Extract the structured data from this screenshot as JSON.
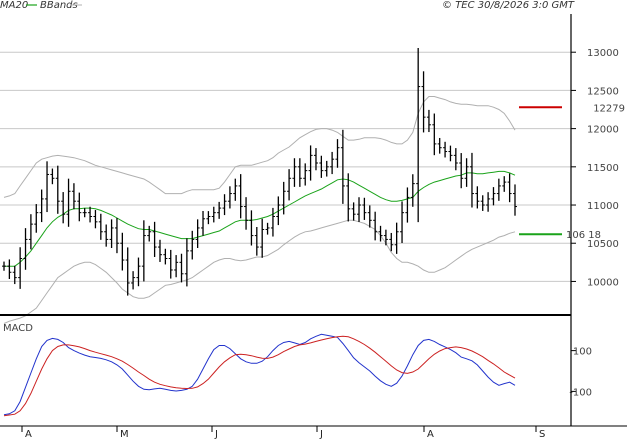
{
  "header": {
    "legend_ma": "MA20",
    "legend_bb": "BBands",
    "copyright": "© TEC 30/8/2026 3:0 GMT",
    "ma_color": "#1aa31a",
    "bb_color": "#b0b0b0"
  },
  "chart_data": [
    {
      "type": "ohlc",
      "title": "",
      "ylim": [
        9600,
        13500
      ],
      "yticks": [
        10000,
        10500,
        11000,
        11500,
        12000,
        12500,
        13000
      ],
      "ytick_labels": [
        "10000",
        "10500",
        "11000",
        "11500",
        "12000",
        "12500",
        "13000"
      ],
      "grid": true,
      "month_labels": [
        "A",
        "M",
        "J",
        "J",
        "A",
        "S"
      ],
      "resistance": {
        "value": 12279,
        "label": "12279",
        "color": "#cc0000"
      },
      "support": {
        "value": 10618,
        "label": "106 18",
        "color": "#1aa31a"
      },
      "close": [
        10200,
        10120,
        10050,
        10300,
        10550,
        10750,
        10900,
        11080,
        11400,
        11350,
        11050,
        10880,
        11180,
        11050,
        10900,
        10900,
        10850,
        10780,
        10650,
        10550,
        10700,
        10500,
        10280,
        9980,
        10050,
        10200,
        10600,
        10650,
        10450,
        10350,
        10300,
        10150,
        10250,
        10100,
        10400,
        10550,
        10700,
        10820,
        10850,
        10900,
        10960,
        11050,
        11150,
        11250,
        10980,
        10800,
        10600,
        10450,
        10680,
        10700,
        10850,
        11000,
        11180,
        11350,
        11500,
        11350,
        11450,
        11650,
        11550,
        11450,
        11500,
        11600,
        11750,
        11250,
        10950,
        10880,
        11000,
        10900,
        10800,
        10650,
        10600,
        10550,
        10480,
        10650,
        10900,
        11100,
        11280,
        12550,
        12150,
        12050,
        11800,
        11750,
        11700,
        11650,
        11550,
        11350,
        11500,
        11150,
        11050,
        11000,
        11080,
        11150,
        11250,
        11300,
        11150,
        10980
      ],
      "ma20": [
        10200,
        10200,
        10200,
        10250,
        10320,
        10400,
        10500,
        10600,
        10700,
        10780,
        10840,
        10880,
        10930,
        10950,
        10950,
        10960,
        10960,
        10950,
        10930,
        10900,
        10870,
        10830,
        10790,
        10750,
        10720,
        10690,
        10680,
        10680,
        10660,
        10640,
        10620,
        10600,
        10580,
        10560,
        10560,
        10560,
        10580,
        10600,
        10620,
        10640,
        10660,
        10700,
        10740,
        10780,
        10800,
        10800,
        10800,
        10810,
        10830,
        10850,
        10880,
        10920,
        10960,
        11000,
        11040,
        11080,
        11120,
        11150,
        11180,
        11210,
        11250,
        11290,
        11330,
        11340,
        11330,
        11300,
        11260,
        11220,
        11180,
        11140,
        11100,
        11070,
        11050,
        11050,
        11060,
        11080,
        11100,
        11180,
        11230,
        11270,
        11300,
        11320,
        11340,
        11360,
        11380,
        11390,
        11420,
        11420,
        11410,
        11410,
        11420,
        11430,
        11440,
        11440,
        11420,
        11390
      ],
      "bb_upper": [
        11100,
        11120,
        11150,
        11250,
        11350,
        11450,
        11550,
        11600,
        11620,
        11640,
        11650,
        11640,
        11630,
        11620,
        11600,
        11580,
        11550,
        11520,
        11500,
        11480,
        11460,
        11440,
        11420,
        11400,
        11380,
        11360,
        11340,
        11300,
        11250,
        11200,
        11150,
        11150,
        11150,
        11150,
        11180,
        11200,
        11200,
        11200,
        11200,
        11200,
        11220,
        11300,
        11400,
        11500,
        11520,
        11520,
        11520,
        11540,
        11560,
        11580,
        11620,
        11680,
        11720,
        11760,
        11820,
        11880,
        11920,
        11960,
        11990,
        12000,
        12000,
        11980,
        11950,
        11900,
        11850,
        11850,
        11860,
        11880,
        11880,
        11880,
        11870,
        11850,
        11820,
        11800,
        11800,
        11850,
        11950,
        12200,
        12350,
        12420,
        12420,
        12400,
        12380,
        12350,
        12330,
        12320,
        12320,
        12310,
        12300,
        12300,
        12300,
        12280,
        12250,
        12200,
        12100,
        11980
      ],
      "bb_lower": [
        9450,
        9480,
        9500,
        9520,
        9550,
        9600,
        9650,
        9750,
        9850,
        9950,
        10050,
        10100,
        10150,
        10200,
        10230,
        10250,
        10250,
        10220,
        10170,
        10120,
        10050,
        9980,
        9900,
        9850,
        9800,
        9780,
        9780,
        9800,
        9850,
        9900,
        9950,
        9960,
        9980,
        10000,
        10020,
        10050,
        10100,
        10150,
        10200,
        10250,
        10280,
        10300,
        10300,
        10280,
        10270,
        10280,
        10300,
        10320,
        10320,
        10340,
        10380,
        10420,
        10480,
        10530,
        10580,
        10620,
        10650,
        10660,
        10680,
        10700,
        10720,
        10740,
        10760,
        10780,
        10800,
        10800,
        10780,
        10760,
        10720,
        10680,
        10600,
        10500,
        10380,
        10300,
        10250,
        10250,
        10230,
        10200,
        10150,
        10120,
        10120,
        10150,
        10180,
        10230,
        10280,
        10330,
        10380,
        10420,
        10450,
        10480,
        10510,
        10540,
        10580,
        10600,
        10630,
        10650
      ]
    },
    {
      "type": "line",
      "title": "MACD",
      "ylim": [
        -260,
        260
      ],
      "yticks": [
        100,
        -100
      ],
      "ytick_labels": [
        "100",
        "-100"
      ],
      "series": [
        {
          "color": "#2233cc",
          "values": [
            -215,
            -210,
            -195,
            -150,
            -80,
            -10,
            60,
            120,
            150,
            160,
            155,
            140,
            115,
            100,
            88,
            78,
            70,
            66,
            62,
            55,
            45,
            30,
            10,
            -20,
            -50,
            -75,
            -90,
            -92,
            -88,
            -85,
            -90,
            -95,
            -98,
            -95,
            -90,
            -75,
            -40,
            10,
            60,
            105,
            125,
            125,
            110,
            85,
            60,
            45,
            38,
            38,
            48,
            70,
            100,
            125,
            140,
            145,
            138,
            130,
            140,
            158,
            170,
            180,
            175,
            170,
            165,
            135,
            100,
            65,
            40,
            20,
            0,
            -25,
            -48,
            -65,
            -75,
            -60,
            -25,
            25,
            80,
            125,
            150,
            155,
            145,
            130,
            118,
            105,
            90,
            68,
            60,
            50,
            30,
            0,
            -30,
            -55,
            -70,
            -62,
            -55,
            -70
          ]
        },
        {
          "color": "#cc2222",
          "values": [
            -220,
            -216,
            -212,
            -195,
            -160,
            -110,
            -50,
            10,
            60,
            100,
            120,
            128,
            128,
            124,
            118,
            110,
            100,
            92,
            85,
            78,
            70,
            60,
            48,
            32,
            14,
            -5,
            -22,
            -40,
            -55,
            -65,
            -72,
            -78,
            -82,
            -85,
            -86,
            -85,
            -78,
            -62,
            -40,
            -10,
            20,
            45,
            65,
            80,
            82,
            80,
            75,
            68,
            63,
            62,
            68,
            80,
            95,
            108,
            120,
            128,
            132,
            138,
            145,
            152,
            158,
            164,
            168,
            170,
            168,
            158,
            145,
            130,
            112,
            92,
            70,
            48,
            25,
            5,
            -8,
            -12,
            -5,
            10,
            35,
            60,
            82,
            98,
            110,
            115,
            118,
            115,
            108,
            98,
            85,
            70,
            52,
            35,
            15,
            -5,
            -20,
            -35
          ]
        }
      ]
    }
  ]
}
